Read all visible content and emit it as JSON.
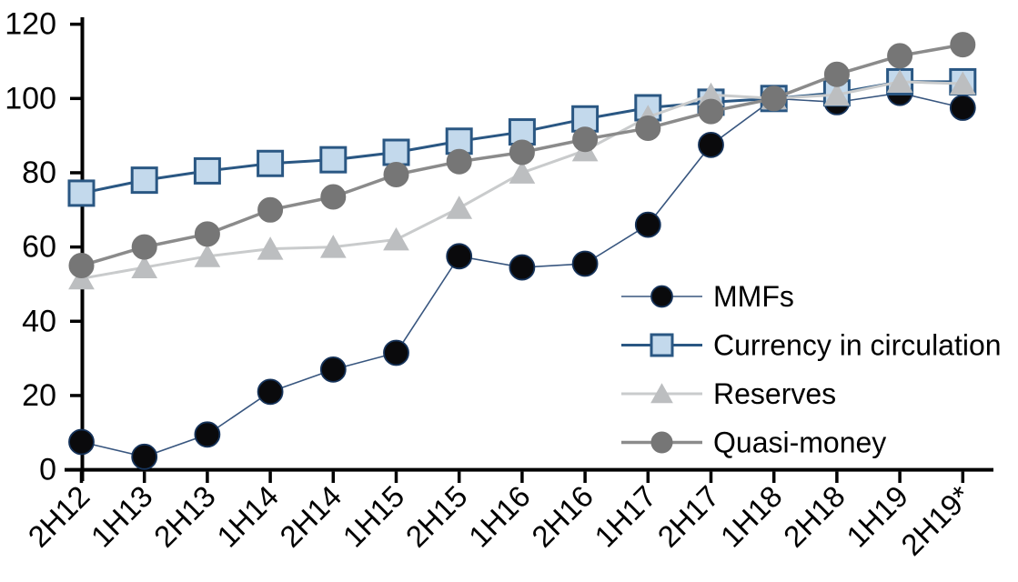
{
  "chart_data": {
    "type": "line",
    "title": "",
    "xlabel": "",
    "ylabel": "",
    "ylim": [
      0,
      120
    ],
    "y_ticks": [
      0,
      20,
      40,
      60,
      80,
      100,
      120
    ],
    "grid": false,
    "legend_position": "inside-right",
    "categories": [
      "2H12",
      "1H13",
      "2H13",
      "1H14",
      "2H14",
      "1H15",
      "2H15",
      "1H16",
      "2H16",
      "1H17",
      "2H17",
      "1H18",
      "2H18",
      "1H19",
      "2H19*"
    ],
    "series": [
      {
        "name": "MMFs",
        "marker": "circle",
        "line_color": "#38567f",
        "line_width": 1.6,
        "marker_fill": "#0a0a0c",
        "marker_stroke": "#16335a",
        "marker_stroke_width": 1.8,
        "values": [
          7.5,
          3.5,
          9.5,
          21,
          27,
          31.5,
          57.5,
          54.5,
          55.5,
          66,
          87.5,
          100,
          99,
          101.5,
          97.5
        ]
      },
      {
        "name": "Currency in circulation",
        "marker": "square",
        "line_color": "#2a5783",
        "line_width": 3,
        "marker_fill": "#c3d9ec",
        "marker_stroke": "#2a5783",
        "marker_stroke_width": 3,
        "values": [
          74.5,
          78,
          80.5,
          82.5,
          83.5,
          85.5,
          88.5,
          91,
          94.5,
          97.5,
          99,
          100,
          101.5,
          104.5,
          104.5
        ]
      },
      {
        "name": "Reserves",
        "marker": "triangle",
        "line_color": "#c9cbcc",
        "line_width": 3,
        "marker_fill": "#bcbec0",
        "marker_stroke": "#bcbec0",
        "marker_stroke_width": 1,
        "values": [
          51.5,
          54.5,
          57.5,
          59.5,
          60,
          62,
          70.5,
          80,
          86,
          95,
          101,
          100,
          101,
          104.5,
          104
        ]
      },
      {
        "name": "Quasi-money",
        "marker": "circle",
        "line_color": "#8b8b8b",
        "line_width": 3.5,
        "marker_fill": "#767676",
        "marker_stroke": "#767676",
        "marker_stroke_width": 1,
        "values": [
          55,
          60,
          63.5,
          70,
          73.5,
          79.5,
          83,
          85.5,
          89,
          92,
          96.5,
          100,
          106.5,
          111.5,
          114.5
        ]
      }
    ]
  }
}
